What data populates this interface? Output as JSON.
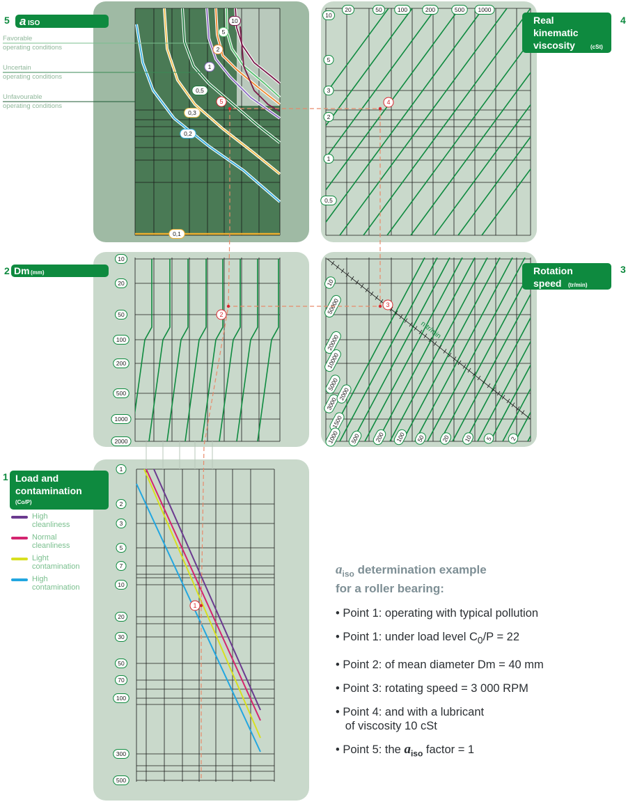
{
  "headers": {
    "aiso": {
      "num": "5",
      "label": "a",
      "sub": "ISO"
    },
    "dm": {
      "num": "2",
      "label": "Dm",
      "unit": "(mm)"
    },
    "viscosity": {
      "num": "4",
      "line1": "Real",
      "line2": "kinematic",
      "line3": "viscosity",
      "unit": "(cSt)"
    },
    "rotation": {
      "num": "3",
      "line1": "Rotation",
      "line2": "speed",
      "unit": "(tr/min)"
    },
    "load": {
      "num": "1",
      "line1": "Load and",
      "line2": "contamination",
      "unit": "(Co/P)"
    }
  },
  "conditions": [
    {
      "line1": "Favorable",
      "line2": "operating conditions"
    },
    {
      "line1": "Uncertain",
      "line2": "operating conditions"
    },
    {
      "line1": "Unfavourable",
      "line2": "operating conditions"
    }
  ],
  "legend": [
    {
      "line1": "High",
      "line2": "cleanliness",
      "color": "#6b3a8f"
    },
    {
      "line1": "Normal",
      "line2": "cleanliness",
      "color": "#d4246f"
    },
    {
      "line1": "Light",
      "line2": "contamination",
      "color": "#d8e020"
    },
    {
      "line1": "High",
      "line2": "contamination",
      "color": "#22a6e0"
    }
  ],
  "rotation_axis_label": "n   tr/min",
  "points": [
    "1",
    "2",
    "3",
    "4",
    "5"
  ],
  "notes": {
    "title_sym": "a",
    "title_sub": "iso",
    "title_rest": " determination example",
    "title_line2": "for a roller bearing:",
    "items": [
      {
        "text": "Point 1: operating with typical pollution"
      },
      {
        "pre": "Point 1: under load level C",
        "sub": "0",
        "post": "/P = 22"
      },
      {
        "text": "Point 2: of mean diameter Dm = 40 mm"
      },
      {
        "text": "Point 3: rotating speed = 3 000 RPM"
      },
      {
        "line1": "Point 4: and with a lubricant",
        "line2": "of viscosity 10 cSt"
      },
      {
        "pre": "Point 5: the ",
        "sym": "a",
        "symsub": "iso",
        "post": " factor = 1"
      }
    ]
  },
  "chart_data": [
    {
      "type": "line",
      "title": "a ISO",
      "series": [
        {
          "name": "0,1",
          "values": []
        },
        {
          "name": "0,2",
          "values": []
        },
        {
          "name": "0,3",
          "values": []
        },
        {
          "name": "0,5",
          "values": []
        },
        {
          "name": "1",
          "values": []
        },
        {
          "name": "2",
          "values": []
        },
        {
          "name": "5",
          "values": []
        },
        {
          "name": "10",
          "values": []
        }
      ],
      "curve_labels": [
        "0,1",
        "0,2",
        "0,3",
        "0,5",
        "1",
        "2",
        "5",
        "10"
      ],
      "curve_colors": [
        "#f0b030",
        "#38b0e0",
        "#f0c050",
        "#1e7a3e",
        "#8a6cc0",
        "#f08a30",
        "#58c070",
        "#7a1a4a"
      ]
    },
    {
      "type": "line",
      "title": "Real kinematic viscosity (cSt)",
      "top_ticks": [
        "20",
        "50",
        "100",
        "200",
        "500",
        "1000"
      ],
      "left_ticks": [
        "10",
        "5",
        "3",
        "2",
        "1",
        "0,5"
      ]
    },
    {
      "type": "line",
      "title": "Dm (mm)",
      "y_ticks": [
        "10",
        "20",
        "50",
        "100",
        "200",
        "500",
        "1000",
        "2000"
      ]
    },
    {
      "type": "line",
      "title": "Rotation speed (tr/min)",
      "diag_labels": [
        "10",
        "50000",
        "20000",
        "10000",
        "5000",
        "3000",
        "2000",
        "1500",
        "1000",
        "500",
        "200",
        "100",
        "50",
        "20",
        "10",
        "5",
        "2"
      ]
    },
    {
      "type": "line",
      "title": "Load and contamination (Co/P)",
      "y_ticks": [
        "1",
        "2",
        "3",
        "5",
        "7",
        "10",
        "20",
        "30",
        "50",
        "70",
        "100",
        "300",
        "500"
      ],
      "series": [
        {
          "name": "High cleanliness",
          "color": "#6b3a8f"
        },
        {
          "name": "Normal cleanliness",
          "color": "#d4246f"
        },
        {
          "name": "Light contamination",
          "color": "#d8e020"
        },
        {
          "name": "High contamination",
          "color": "#22a6e0"
        }
      ]
    }
  ]
}
